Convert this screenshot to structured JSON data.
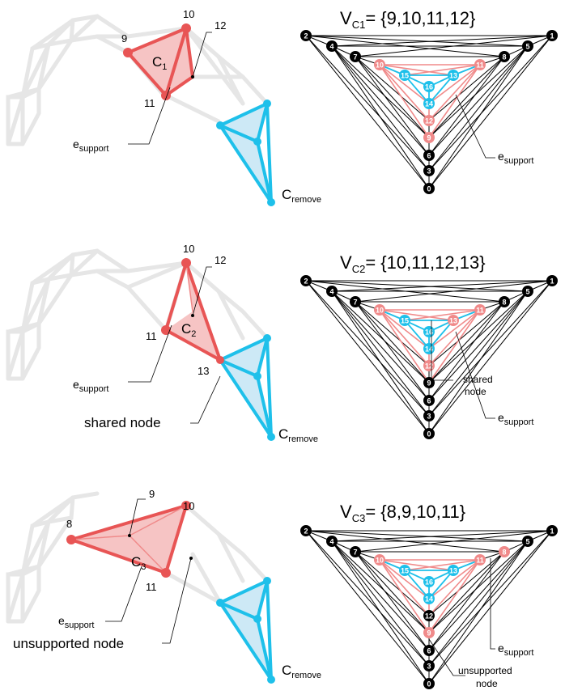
{
  "panels": [
    {
      "title_main": "V",
      "title_sub": "C1",
      "title_set": "= {9,10,11,12}",
      "cluster_main": "C",
      "cluster_sub": "1",
      "support_main": "e",
      "support_sub": "support",
      "remove_main": "C",
      "remove_sub": "remove",
      "structure_labels": [
        "9",
        "10",
        "11",
        "12"
      ],
      "graph_support_main": "e",
      "graph_support_sub": "support"
    },
    {
      "title_main": "V",
      "title_sub": "C2",
      "title_set": "= {10,11,12,13}",
      "cluster_main": "C",
      "cluster_sub": "2",
      "support_main": "e",
      "support_sub": "support",
      "remove_main": "C",
      "remove_sub": "remove",
      "shared_node_label": "shared node",
      "structure_labels": [
        "10",
        "11",
        "12",
        "13"
      ],
      "graph_shared_1": "shared",
      "graph_shared_2": "node",
      "graph_support_main": "e",
      "graph_support_sub": "support"
    },
    {
      "title_main": "V",
      "title_sub": "C3",
      "title_set": "= {8,9,10,11}",
      "cluster_main": "C",
      "cluster_sub": "3",
      "support_main": "e",
      "support_sub": "support",
      "remove_main": "C",
      "remove_sub": "remove",
      "unsupported_label": "unsupported node",
      "structure_labels": [
        "8",
        "9",
        "10",
        "11"
      ],
      "graph_support_main": "e",
      "graph_support_sub": "support",
      "graph_unsupported_1": "unsupported",
      "graph_unsupported_2": "node"
    }
  ],
  "graph_nodes": [
    "0",
    "1",
    "2",
    "3",
    "4",
    "5",
    "6",
    "7",
    "8",
    "9",
    "10",
    "11",
    "12",
    "13",
    "14",
    "15",
    "16"
  ],
  "colors": {
    "black": "#000000",
    "red": "#f08a8a",
    "red_strong": "#e85555",
    "red_fill": "#f6c4c4",
    "blue": "#1ec0ea",
    "blue_fill": "#cde9f6",
    "gray": "#e6e6e6"
  }
}
